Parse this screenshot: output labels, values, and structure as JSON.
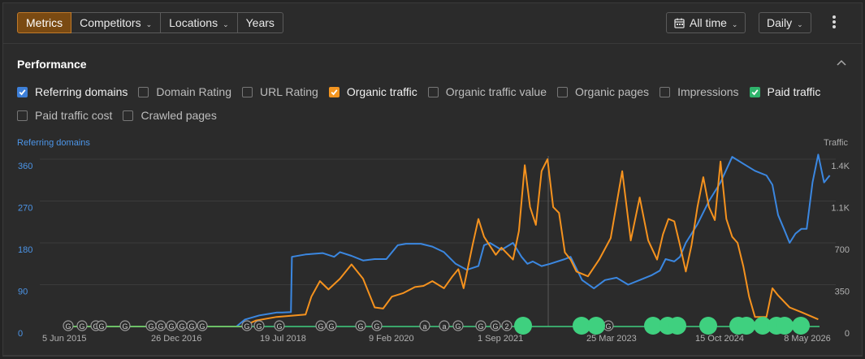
{
  "toolbar": {
    "tabs": [
      {
        "label": "Metrics",
        "dropdown": false,
        "active": true
      },
      {
        "label": "Competitors",
        "dropdown": true,
        "active": false
      },
      {
        "label": "Locations",
        "dropdown": true,
        "active": false
      },
      {
        "label": "Years",
        "dropdown": false,
        "active": false
      }
    ],
    "date_range": "All time",
    "granularity": "Daily",
    "more_icon": "more-vertical-icon"
  },
  "section": {
    "title": "Performance",
    "collapse_icon": "chevron-up-icon"
  },
  "checkboxes": [
    {
      "label": "Referring domains",
      "checked": true,
      "color": "#3d7fd8"
    },
    {
      "label": "Domain Rating",
      "checked": false
    },
    {
      "label": "URL Rating",
      "checked": false
    },
    {
      "label": "Organic traffic",
      "checked": true,
      "color": "#f39520"
    },
    {
      "label": "Organic traffic value",
      "checked": false
    },
    {
      "label": "Organic pages",
      "checked": false
    },
    {
      "label": "Impressions",
      "checked": false
    },
    {
      "label": "Paid traffic",
      "checked": true,
      "color": "#2fb36b"
    },
    {
      "label": "Paid traffic cost",
      "checked": false
    },
    {
      "label": "Crawled pages",
      "checked": false
    }
  ],
  "colors": {
    "accent": "#c07a2a",
    "referring_domains": "#3b87e0",
    "organic_traffic": "#f5921e",
    "paid_traffic": "#3fd07f",
    "grid": "#3b3b3b"
  },
  "chart_data": {
    "type": "line",
    "left_axis_label": "Referring domains",
    "right_axis_label": "Traffic",
    "left_ticks": [
      "0",
      "90",
      "180",
      "270",
      "360"
    ],
    "right_ticks": [
      "0",
      "350",
      "700",
      "1.1K",
      "1.4K"
    ],
    "x_ticks": [
      "5 Jun 2015",
      "26 Dec 2016",
      "19 Jul 2018",
      "9 Feb 2020",
      "1 Sep 2021",
      "25 Mar 2023",
      "15 Oct 2024",
      "8 May 2026"
    ],
    "x_range": [
      "2015-06-05",
      "2026-05-08"
    ],
    "ylim_left": [
      0,
      360
    ],
    "ylim_right": [
      0,
      1400
    ],
    "grid": true,
    "series": [
      {
        "name": "Referring domains",
        "axis": "left",
        "x": [
          "2015-06-05",
          "2017-12-01",
          "2018-01-15",
          "2018-04-01",
          "2018-06-01",
          "2018-07-01",
          "2018-08-01",
          "2018-09-15",
          "2018-09-20",
          "2018-12-01",
          "2019-03-01",
          "2019-05-01",
          "2019-06-01",
          "2019-08-01",
          "2019-10-01",
          "2019-12-01",
          "2020-02-01",
          "2020-04-01",
          "2020-05-15",
          "2020-08-01",
          "2020-10-01",
          "2020-12-01",
          "2021-02-01",
          "2021-04-01",
          "2021-06-01",
          "2021-07-01",
          "2021-08-01",
          "2021-10-01",
          "2021-12-01",
          "2022-01-15",
          "2022-02-15",
          "2022-03-15",
          "2022-05-01",
          "2022-06-15",
          "2022-09-01",
          "2022-10-01",
          "2022-12-01",
          "2023-02-01",
          "2023-04-01",
          "2023-06-01",
          "2023-08-01",
          "2023-10-01",
          "2023-12-01",
          "2024-01-15",
          "2024-02-15",
          "2024-04-01",
          "2024-05-01",
          "2024-06-01",
          "2024-08-01",
          "2024-10-01",
          "2024-12-01",
          "2025-02-01",
          "2025-04-01",
          "2025-06-01",
          "2025-08-01",
          "2025-09-01",
          "2025-10-01",
          "2025-11-01",
          "2025-12-01",
          "2026-01-01",
          "2026-02-01",
          "2026-03-01",
          "2026-04-01",
          "2026-05-01",
          "2026-06-01",
          "2026-07-01"
        ],
        "y": [
          0,
          0,
          15,
          24,
          28,
          30,
          30,
          31,
          150,
          155,
          158,
          150,
          160,
          152,
          142,
          145,
          145,
          175,
          178,
          178,
          172,
          160,
          135,
          122,
          130,
          175,
          180,
          165,
          180,
          150,
          135,
          140,
          130,
          135,
          145,
          150,
          100,
          82,
          100,
          105,
          90,
          100,
          110,
          120,
          145,
          140,
          150,
          180,
          220,
          270,
          310,
          365,
          350,
          335,
          325,
          305,
          240,
          210,
          180,
          200,
          210,
          210,
          310,
          370,
          310,
          325
        ]
      },
      {
        "name": "Organic traffic",
        "axis": "right",
        "x": [
          "2015-06-05",
          "2018-01-01",
          "2018-03-15",
          "2018-07-01",
          "2018-12-01",
          "2019-01-01",
          "2019-02-15",
          "2019-04-01",
          "2019-06-01",
          "2019-08-01",
          "2019-10-01",
          "2019-12-01",
          "2020-01-15",
          "2020-03-01",
          "2020-05-01",
          "2020-07-01",
          "2020-08-15",
          "2020-10-01",
          "2020-12-01",
          "2021-01-15",
          "2021-02-15",
          "2021-03-15",
          "2021-05-01",
          "2021-06-01",
          "2021-07-01",
          "2021-09-01",
          "2021-10-01",
          "2021-12-01",
          "2022-01-01",
          "2022-02-01",
          "2022-03-01",
          "2022-04-01",
          "2022-05-01",
          "2022-06-01",
          "2022-07-01",
          "2022-08-01",
          "2022-09-01",
          "2022-10-01",
          "2022-11-01",
          "2023-01-01",
          "2023-03-01",
          "2023-05-01",
          "2023-07-01",
          "2023-08-15",
          "2023-10-01",
          "2023-11-15",
          "2024-01-01",
          "2024-02-01",
          "2024-03-01",
          "2024-04-01",
          "2024-05-01",
          "2024-06-01",
          "2024-07-01",
          "2024-08-01",
          "2024-09-01",
          "2024-10-01",
          "2024-11-01",
          "2024-12-01",
          "2025-01-01",
          "2025-02-01",
          "2025-03-01",
          "2025-04-01",
          "2025-05-01",
          "2025-06-01",
          "2025-08-01",
          "2025-09-01",
          "2025-10-01",
          "2025-12-01",
          "2026-02-01",
          "2026-04-01",
          "2026-05-01"
        ],
        "y": [
          0,
          0,
          50,
          80,
          100,
          250,
          380,
          310,
          400,
          520,
          400,
          160,
          150,
          250,
          280,
          330,
          340,
          380,
          320,
          420,
          480,
          320,
          680,
          900,
          750,
          600,
          660,
          560,
          800,
          1350,
          1000,
          850,
          1300,
          1400,
          1000,
          950,
          620,
          560,
          460,
          420,
          560,
          740,
          1300,
          720,
          1080,
          720,
          560,
          770,
          900,
          880,
          680,
          460,
          680,
          1000,
          1250,
          1000,
          890,
          1380,
          900,
          750,
          700,
          500,
          250,
          80,
          80,
          320,
          260,
          160,
          120,
          80,
          60
        ]
      },
      {
        "name": "Paid traffic",
        "axis": "right",
        "x": [
          "2015-06-05",
          "2026-05-08"
        ],
        "y": [
          0,
          0
        ]
      }
    ],
    "annotation_labels": [
      "G",
      "G",
      "G",
      "G",
      "G",
      "G",
      "G",
      "G",
      "G",
      "G",
      "G",
      "G",
      "G",
      "G",
      "G",
      "G",
      "G",
      "G",
      "a",
      "a",
      "G",
      "G",
      "G",
      "2",
      "G",
      "G"
    ]
  }
}
